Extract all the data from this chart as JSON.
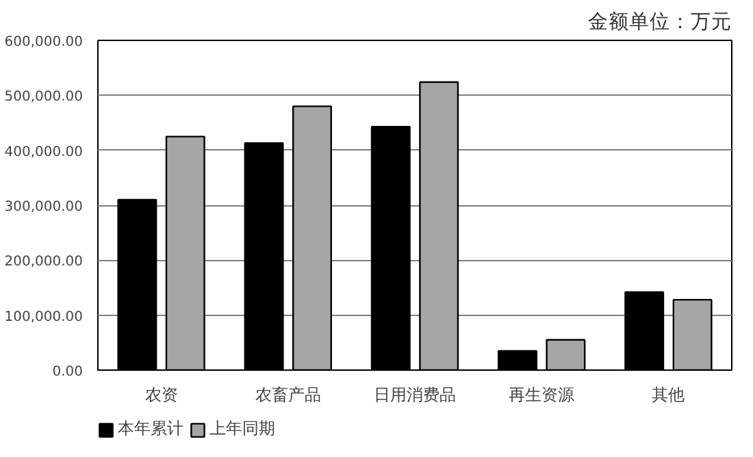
{
  "chart_data": {
    "type": "bar",
    "title": "金额单位：万元",
    "categories": [
      "农资",
      "农畜产品",
      "日用消费品",
      "再生资源",
      "其他"
    ],
    "series": [
      {
        "name": "本年累计",
        "color": "#000000",
        "values": [
          310000,
          413000,
          443000,
          35000,
          142000
        ]
      },
      {
        "name": "上年同期",
        "color": "#a6a6a6",
        "values": [
          425000,
          480000,
          524000,
          55000,
          128000
        ]
      }
    ],
    "ylim": [
      0,
      600000
    ],
    "yticks": [
      {
        "value": 0,
        "label": "0.00"
      },
      {
        "value": 100000,
        "label": "100,000.00"
      },
      {
        "value": 200000,
        "label": "200,000.00"
      },
      {
        "value": 300000,
        "label": "300,000.00"
      },
      {
        "value": 400000,
        "label": "400,000.00"
      },
      {
        "value": 500000,
        "label": "500,000.00"
      },
      {
        "value": 600000,
        "label": "600,000.00"
      }
    ],
    "grid": "y",
    "legend": "bottom left"
  }
}
